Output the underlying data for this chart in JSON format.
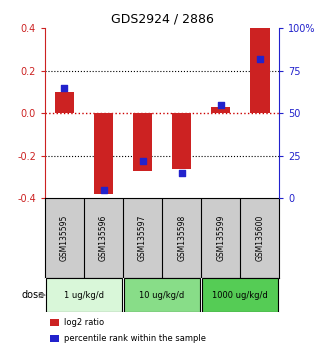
{
  "title": "GDS2924 / 2886",
  "samples": [
    "GSM135595",
    "GSM135596",
    "GSM135597",
    "GSM135598",
    "GSM135599",
    "GSM135600"
  ],
  "log2_ratio": [
    0.1,
    -0.38,
    -0.27,
    -0.26,
    0.03,
    0.4
  ],
  "percentile_rank": [
    65,
    5,
    22,
    15,
    55,
    82
  ],
  "ylim_left": [
    -0.4,
    0.4
  ],
  "ylim_right": [
    0,
    100
  ],
  "yticks_left": [
    -0.4,
    -0.2,
    0.0,
    0.2,
    0.4
  ],
  "yticks_right": [
    0,
    25,
    50,
    75,
    100
  ],
  "ytick_labels_right": [
    "0",
    "25",
    "50",
    "75",
    "100%"
  ],
  "bar_color": "#cc2222",
  "dot_color": "#2222cc",
  "dotted_line_color": "#000000",
  "zero_line_color": "#cc0000",
  "dose_groups": [
    {
      "label": "1 ug/kg/d",
      "samples": [
        0,
        1
      ],
      "color": "#d9f7d9"
    },
    {
      "label": "10 ug/kg/d",
      "samples": [
        2,
        3
      ],
      "color": "#88dd88"
    },
    {
      "label": "1000 ug/kg/d",
      "samples": [
        4,
        5
      ],
      "color": "#55cc55"
    }
  ],
  "dose_label": "dose",
  "legend_bar_label": "log2 ratio",
  "legend_dot_label": "percentile rank within the sample",
  "sample_box_color": "#cccccc",
  "plot_bg_color": "#ffffff",
  "left_axis_color": "#cc2222",
  "right_axis_color": "#2222cc"
}
